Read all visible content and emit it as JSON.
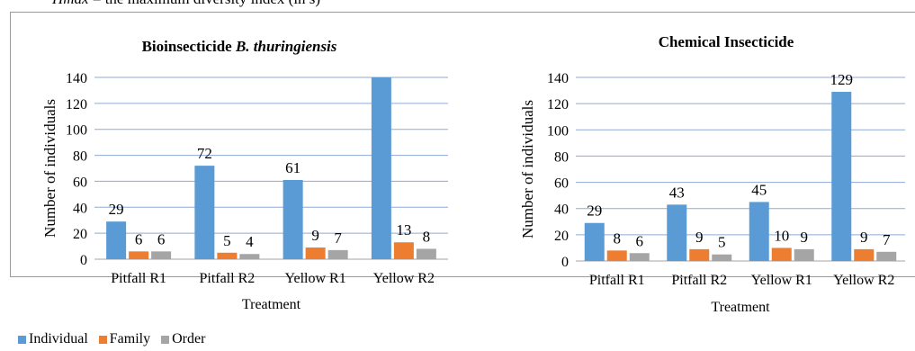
{
  "caption": "Hmax = the maximum diversity index (ln s)",
  "chart_data": [
    {
      "type": "bar",
      "title": "Bioinsecticide B. thuringiensis",
      "xlabel": "Treatment",
      "ylabel": "Number of individuals",
      "ylim": [
        0,
        140
      ],
      "yticks": [
        "0",
        "20",
        "40",
        "60",
        "80",
        "100",
        "120",
        "140"
      ],
      "grid": true,
      "categories": [
        "Pitfall R1",
        "Pitfall R2",
        "Yellow R1",
        "Yellow R2"
      ],
      "series": [
        {
          "name": "Individual",
          "values": [
            29,
            72,
            61,
            140
          ]
        },
        {
          "name": "Family",
          "values": [
            6,
            5,
            9,
            13
          ]
        },
        {
          "name": "Order",
          "values": [
            6,
            4,
            7,
            8
          ]
        }
      ],
      "value_labels": [
        [
          "29",
          "72",
          "61",
          ""
        ],
        [
          "6",
          "5",
          "9",
          "13"
        ],
        [
          "6",
          "4",
          "7",
          "8"
        ]
      ]
    },
    {
      "type": "bar",
      "title": "Chemical Insecticide",
      "xlabel": "Treatment",
      "ylabel": "Number of individuals",
      "ylim": [
        0,
        140
      ],
      "yticks": [
        "0",
        "20",
        "40",
        "60",
        "80",
        "100",
        "120",
        "140"
      ],
      "grid": true,
      "categories": [
        "Pitfall R1",
        "Pitfall R2",
        "Yellow R1",
        "Yellow R2"
      ],
      "series": [
        {
          "name": "Individual",
          "values": [
            29,
            43,
            45,
            129
          ]
        },
        {
          "name": "Family",
          "values": [
            8,
            9,
            10,
            9
          ]
        },
        {
          "name": "Order",
          "values": [
            6,
            5,
            9,
            7
          ]
        }
      ],
      "value_labels": [
        [
          "29",
          "43",
          "45",
          "129"
        ],
        [
          "8",
          "9",
          "10",
          "9"
        ],
        [
          "6",
          "5",
          "9",
          "7"
        ]
      ]
    }
  ],
  "legend": {
    "placement": "bottom-left",
    "items": [
      {
        "label": "Individual",
        "color": "#5b9bd5"
      },
      {
        "label": "Family",
        "color": "#ed7d31"
      },
      {
        "label": "Order",
        "color": "#a5a5a5"
      }
    ]
  },
  "colors": {
    "gridline": "#8eaad8",
    "axis": "#a6a6a6"
  }
}
